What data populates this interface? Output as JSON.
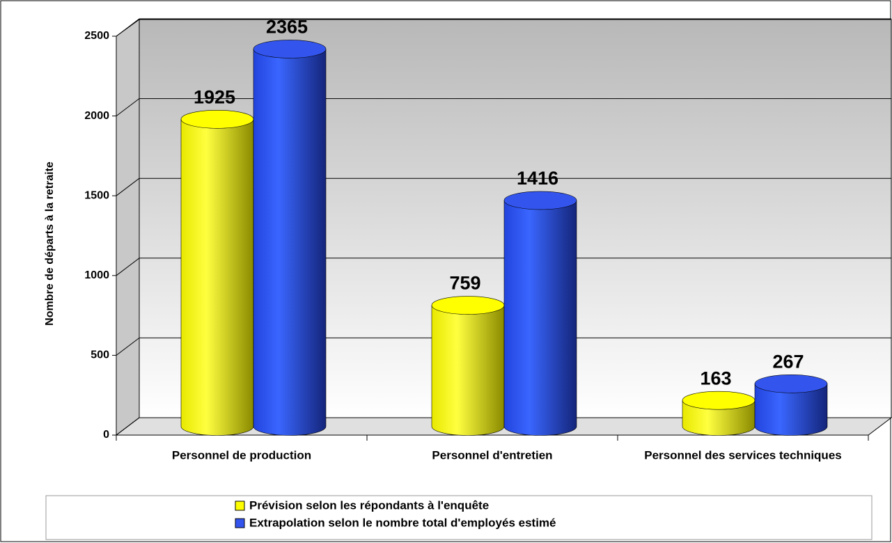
{
  "chart_data": {
    "type": "bar",
    "y_label": "Nombre de départs à la retraite",
    "categories": [
      "Personnel de production",
      "Personnel d'entretien",
      "Personnel des services techniques"
    ],
    "series": [
      {
        "name": "Prévision selon les répondants à l'enquête",
        "color": "#ffff00",
        "values": [
          1925,
          759,
          163
        ]
      },
      {
        "name": "Extrapolation selon le nombre total d'employés estimé",
        "color": "#3355ee",
        "values": [
          2365,
          1416,
          267
        ]
      }
    ],
    "ylim": [
      0,
      2500
    ],
    "yticks": [
      0,
      500,
      1000,
      1500,
      2000,
      2500
    ],
    "grid": true,
    "legend": "bottom"
  }
}
